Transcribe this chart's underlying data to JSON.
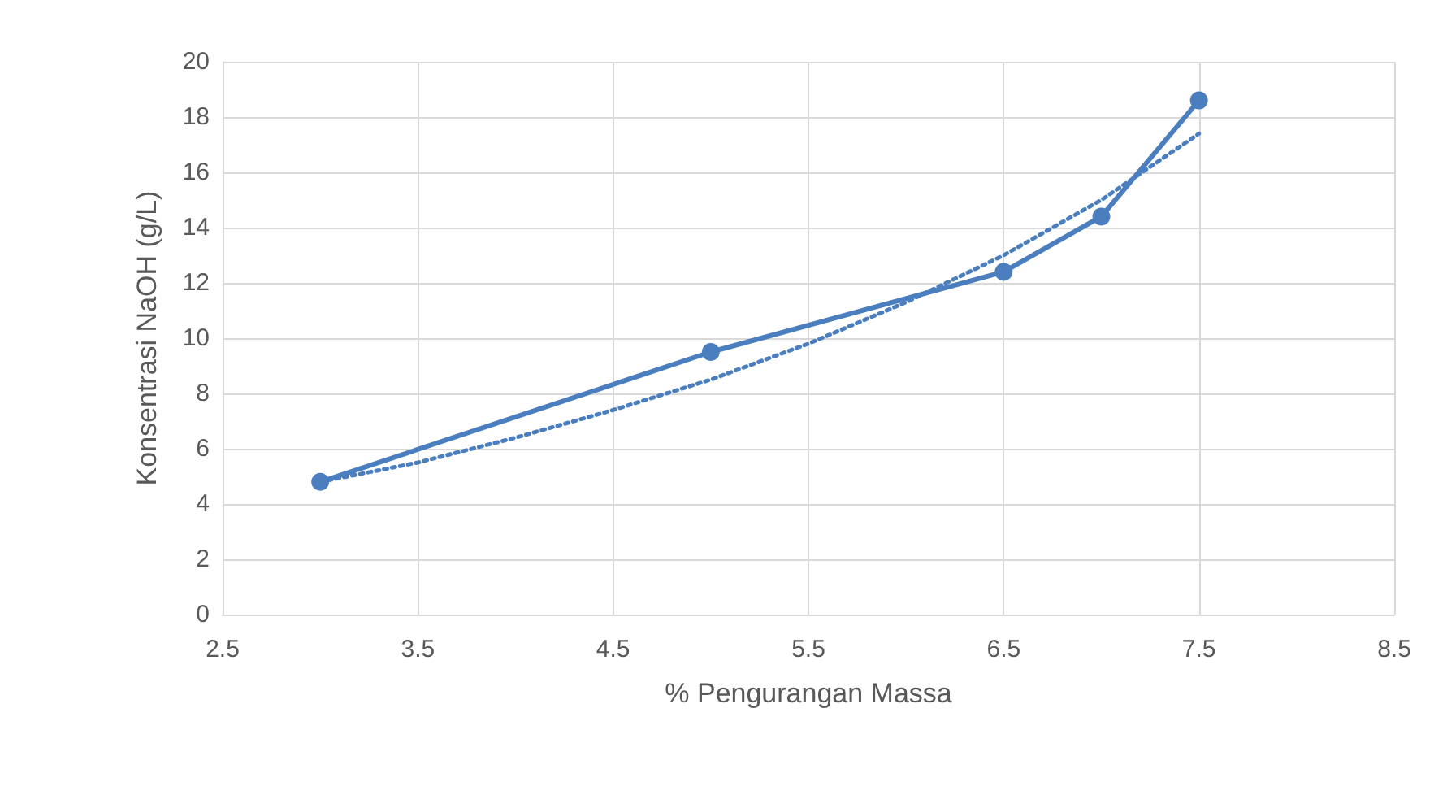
{
  "chart_data": {
    "type": "line",
    "xlabel": "% Pengurangan Massa",
    "ylabel": "Konsentrasi NaOH (g/L)",
    "xlim": [
      2.5,
      8.5
    ],
    "xticks": [
      2.5,
      3.5,
      4.5,
      5.5,
      6.5,
      7.5,
      8.5
    ],
    "ylim": [
      0,
      20
    ],
    "yticks": [
      0,
      2,
      4,
      6,
      8,
      10,
      12,
      14,
      16,
      18,
      20
    ],
    "grid": true,
    "series": [
      {
        "color": "#4a7ebf",
        "x": [
          3,
          5,
          6.5,
          7,
          7.5
        ],
        "values": [
          4.8,
          9.5,
          12.4,
          14.4,
          18.6
        ],
        "marker": "circle",
        "line_style": "solid"
      },
      {
        "color": "#4a7ebf",
        "x": [
          3,
          3.5,
          4,
          4.5,
          5,
          5.5,
          6,
          6.5,
          7,
          7.5
        ],
        "values": [
          4.8,
          5.5,
          6.4,
          7.4,
          8.5,
          9.8,
          11.3,
          13.0,
          15.0,
          17.4
        ],
        "marker": "none",
        "line_style": "dotted"
      }
    ]
  }
}
